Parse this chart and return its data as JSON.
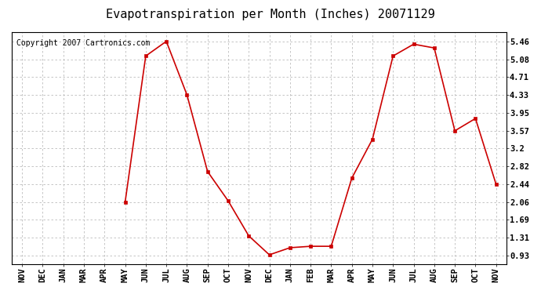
{
  "title": "Evapotranspiration per Month (Inches) 20071129",
  "copyright": "Copyright 2007 Cartronics.com",
  "x_labels": [
    "NOV",
    "DEC",
    "JAN",
    "MAR",
    "APR",
    "MAY",
    "JUN",
    "JUL",
    "AUG",
    "SEP",
    "OCT",
    "NOV",
    "DEC",
    "JAN",
    "FEB",
    "MAR",
    "APR",
    "MAY",
    "JUN",
    "JUL",
    "AUG",
    "SEP",
    "OCT",
    "NOV"
  ],
  "x_indices_with_data": [
    5,
    6,
    7,
    8,
    9,
    10,
    11,
    12,
    13,
    14,
    15,
    16,
    17,
    18,
    19,
    20,
    21,
    22,
    23
  ],
  "y_values_with_data": [
    2.06,
    5.15,
    5.46,
    4.33,
    2.71,
    2.09,
    1.35,
    0.95,
    1.1,
    1.13,
    1.13,
    2.57,
    3.39,
    5.15,
    5.4,
    5.32,
    3.57,
    3.83,
    2.44
  ],
  "y_ticks": [
    0.93,
    1.31,
    1.69,
    2.06,
    2.44,
    2.82,
    3.2,
    3.57,
    3.95,
    4.33,
    4.71,
    5.08,
    5.46
  ],
  "line_color": "#cc0000",
  "marker_color": "#cc0000",
  "bg_color": "#ffffff",
  "grid_color": "#bbbbbb",
  "title_fontsize": 11,
  "copyright_fontsize": 7,
  "tick_fontsize": 7.5,
  "y_min": 0.75,
  "y_max": 5.65
}
